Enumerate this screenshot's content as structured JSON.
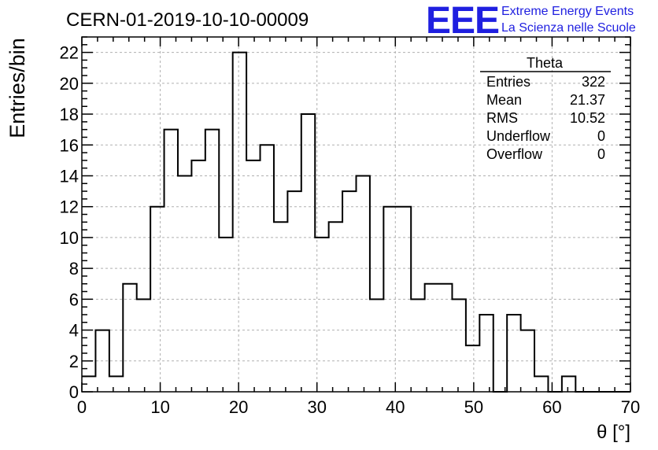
{
  "header": {
    "title": "CERN-01-2019-10-10-00009",
    "logo": "EEE",
    "logo_line1": "Extreme Energy Events",
    "logo_line2": "La Scienza nelle Scuole",
    "logo_color": "#1f1fe0"
  },
  "stats": {
    "name": "Theta",
    "rows": [
      {
        "label": "Entries",
        "value": "322"
      },
      {
        "label": "Mean",
        "value": "21.37"
      },
      {
        "label": "RMS",
        "value": "10.52"
      },
      {
        "label": "Underflow",
        "value": "0"
      },
      {
        "label": "Overflow",
        "value": "0"
      }
    ]
  },
  "chart_data": {
    "type": "bar",
    "title": "CERN-01-2019-10-10-00009",
    "xlabel": "θ [°]",
    "ylabel": "Entries/bin",
    "xlim": [
      0,
      70
    ],
    "ylim": [
      0,
      23
    ],
    "grid": true,
    "bin_width": 1.75,
    "bin_start": 0,
    "values": [
      1,
      4,
      1,
      7,
      6,
      12,
      17,
      14,
      15,
      17,
      10,
      22,
      15,
      16,
      11,
      13,
      18,
      10,
      11,
      13,
      14,
      6,
      12,
      12,
      6,
      7,
      7,
      6,
      3,
      5,
      0,
      5,
      4,
      1,
      0,
      1,
      0,
      0,
      0,
      0
    ],
    "x_ticks": [
      "0",
      "10",
      "20",
      "30",
      "40",
      "50",
      "60",
      "70"
    ],
    "y_ticks": [
      "0",
      "2",
      "4",
      "6",
      "8",
      "10",
      "12",
      "14",
      "16",
      "18",
      "20",
      "22"
    ]
  }
}
